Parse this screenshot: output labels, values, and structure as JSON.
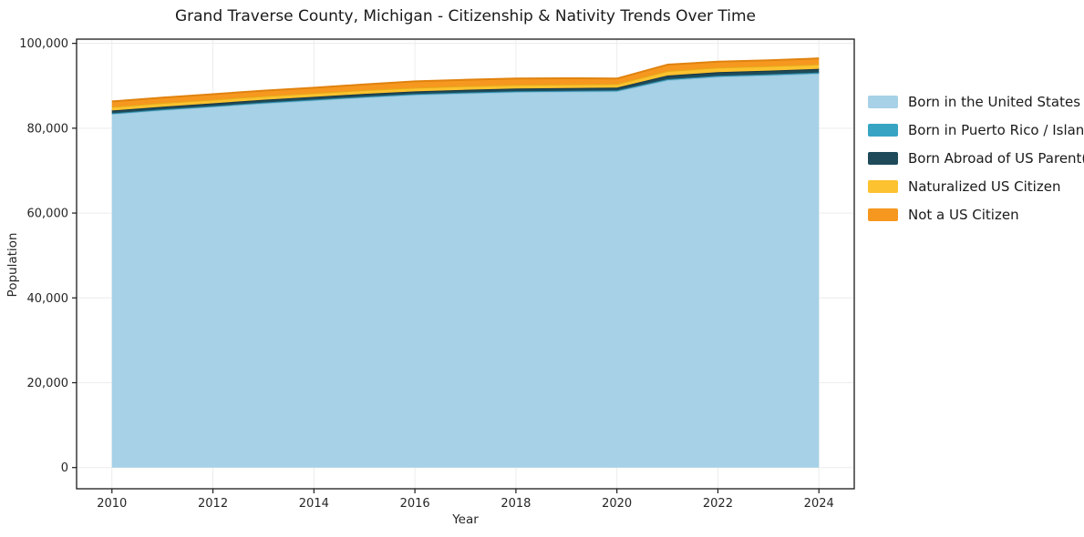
{
  "title": "Grand Traverse County, Michigan - Citizenship & Nativity Trends Over Time",
  "chart_data": {
    "type": "area",
    "stacked": true,
    "title": "Grand Traverse County, Michigan - Citizenship & Nativity Trends Over Time",
    "xlabel": "Year",
    "ylabel": "Population",
    "x": [
      2010,
      2011,
      2012,
      2013,
      2014,
      2015,
      2016,
      2017,
      2018,
      2019,
      2020,
      2021,
      2022,
      2023,
      2024
    ],
    "series": [
      {
        "name": "Born in the United States",
        "color": "#a6d1e6",
        "edge": "#8abfda",
        "values": [
          83400,
          84300,
          85100,
          85900,
          86600,
          87300,
          87900,
          88250,
          88550,
          88650,
          88750,
          91350,
          92150,
          92500,
          92900
        ]
      },
      {
        "name": "Born in Puerto Rico / Islands",
        "color": "#37a4c3",
        "edge": "#2b8ca8",
        "values": [
          130,
          140,
          140,
          150,
          150,
          160,
          160,
          170,
          170,
          180,
          180,
          200,
          210,
          220,
          230
        ]
      },
      {
        "name": "Born Abroad of US Parent(s)",
        "color": "#1e4a5a",
        "edge": "#163846",
        "values": [
          640,
          640,
          640,
          650,
          650,
          650,
          640,
          640,
          640,
          640,
          640,
          860,
          860,
          860,
          860
        ]
      },
      {
        "name": "Naturalized US Citizen",
        "color": "#fcc22f",
        "edge": "#e5a91a",
        "values": [
          860,
          860,
          860,
          860,
          860,
          870,
          860,
          860,
          860,
          860,
          860,
          1070,
          1070,
          1070,
          1070
        ]
      },
      {
        "name": "Not a US Citizen",
        "color": "#f6981f",
        "edge": "#e0820f",
        "values": [
          1290,
          1280,
          1280,
          1300,
          1280,
          1350,
          1500,
          1500,
          1500,
          1450,
          1280,
          1500,
          1400,
          1350,
          1400
        ]
      }
    ],
    "x_ticks": [
      2010,
      2012,
      2014,
      2016,
      2018,
      2020,
      2022,
      2024
    ],
    "x_tick_labels": [
      "2010",
      "2012",
      "2014",
      "2016",
      "2018",
      "2020",
      "2022",
      "2024"
    ],
    "y_ticks": [
      0,
      20000,
      40000,
      60000,
      80000,
      100000
    ],
    "y_tick_labels": [
      "0",
      "20,000",
      "40,000",
      "60,000",
      "80,000",
      "100,000"
    ],
    "xlim": [
      2009.3,
      2024.7
    ],
    "ylim": [
      -5000,
      101000
    ],
    "grid": true,
    "grid_color": "#ececec",
    "axis_color": "#1a1a1a",
    "tick_label_color": "#262626",
    "legend_position": "right"
  }
}
